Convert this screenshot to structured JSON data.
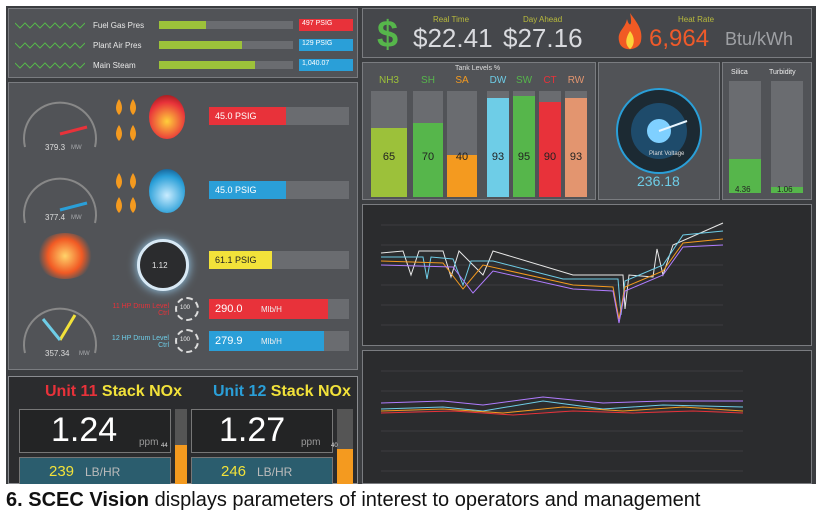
{
  "top_strip": {
    "rows": [
      {
        "label": "Fuel Gas Pres",
        "value": "497 PSIG",
        "value_color": "#e8323a",
        "fill_pct": 0.35
      },
      {
        "label": "Plant Air Pres",
        "value": "129 PSIG",
        "value_color": "#2a9fd8",
        "fill_pct": 0.62
      },
      {
        "label": "Main Steam",
        "value": "1,040.07",
        "value_color": "#2a9fd8",
        "fill_pct": 0.72
      }
    ]
  },
  "kpis": {
    "real_time_label": "Real Time",
    "real_time_value": "$22.41",
    "day_ahead_label": "Day Ahead",
    "day_ahead_value": "$27.16",
    "heat_rate_label": "Heat Rate",
    "heat_rate_value": "6,964",
    "heat_rate_unit": "Btu/kWh"
  },
  "units": {
    "gauge1_value": "379.3",
    "gauge1_unit": "MW",
    "gauge2_value": "377.4",
    "gauge2_unit": "MW",
    "gauge3_value": "357.34",
    "gauge3_unit": "MW",
    "psig_rows": [
      {
        "value": "45.0 PSIG",
        "color": "#e8323a",
        "fill_pct": 0.55
      },
      {
        "value": "45.0 PSIG",
        "color": "#2a9fd8",
        "fill_pct": 0.55
      },
      {
        "value": "61.1 PSIG",
        "color": "#f2e23a",
        "fill_pct": 0.45
      }
    ],
    "drum_label_11": "11 HP Drum Level Ctrl",
    "drum_label_12": "12 HP Drum Level Ctrl",
    "drum_val_11": "100",
    "drum_val_12": "100",
    "ring_value": "1.12",
    "flow_rows": [
      {
        "value": "290.0",
        "unit": "Mlb/H",
        "color": "#e8323a",
        "fill_pct": 0.85
      },
      {
        "value": "279.9",
        "unit": "Mlb/H",
        "color": "#2a9fd8",
        "fill_pct": 0.82
      }
    ]
  },
  "tanks": {
    "title": "Tank Levels %",
    "items": [
      {
        "name": "NH3",
        "value": 65,
        "color": "#9cc13a"
      },
      {
        "name": "SH",
        "value": 70,
        "color": "#56b64b"
      },
      {
        "name": "SA",
        "value": 40,
        "color": "#f49a1f"
      },
      {
        "name": "DW",
        "value": 93,
        "color": "#6ecde7"
      },
      {
        "name": "SW",
        "value": 95,
        "color": "#56b64b"
      },
      {
        "name": "CT",
        "value": 90,
        "color": "#e8323a"
      },
      {
        "name": "RW",
        "value": 93,
        "color": "#e3956f"
      }
    ]
  },
  "plant_voltage": {
    "label": "Plant Voltage",
    "value": "236.18"
  },
  "silica": {
    "label": "Silica",
    "value": "4.36",
    "fill_pct": 0.3
  },
  "turbidity": {
    "label": "Turbidity",
    "value": "1.06",
    "fill_pct": 0.05
  },
  "nox": {
    "u11_unit": "Unit 11",
    "u11_rest": "Stack NOx",
    "u11_ppm": "1.24",
    "u11_ppm_unit": "ppm",
    "u11_lb": "239",
    "u11_lb_unit": "LB/HR",
    "u11_side": "44",
    "u12_unit": "Unit 12",
    "u12_rest": "Stack NOx",
    "u12_ppm": "1.27",
    "u12_ppm_unit": "ppm",
    "u12_lb": "246",
    "u12_lb_unit": "LB/HR",
    "u12_side": "40"
  },
  "caption": {
    "number": "6.",
    "bold": "SCEC Vision",
    "rest": " displays parameters of interest to operators and management"
  },
  "colors": {
    "red": "#e8323a",
    "blue": "#2a9fd8",
    "green": "#56b64b",
    "orange": "#f49a1f"
  }
}
